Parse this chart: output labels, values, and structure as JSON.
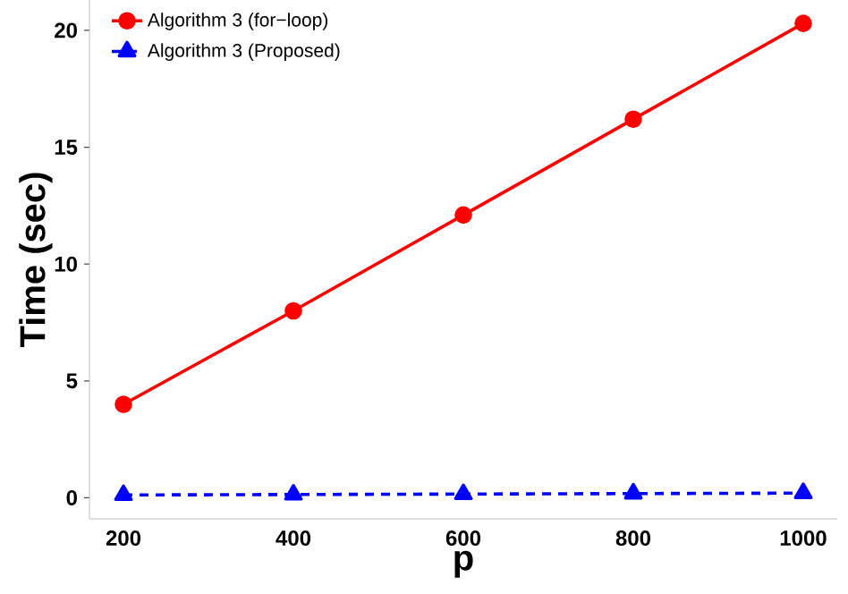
{
  "chart_data": {
    "type": "line",
    "xlabel": "p",
    "ylabel": "Time (sec)",
    "x": [
      200,
      400,
      600,
      800,
      1000
    ],
    "series": [
      {
        "name": "Algorithm 3 (for−loop)",
        "color": "#ff0000",
        "values": [
          4.0,
          8.0,
          12.1,
          16.2,
          20.3
        ],
        "marker": "circle",
        "line_style": "solid"
      },
      {
        "name": "Algorithm 3 (Proposed)",
        "color": "#0000ff",
        "values": [
          0.12,
          0.14,
          0.16,
          0.18,
          0.2
        ],
        "marker": "triangle",
        "line_style": "dashed"
      }
    ],
    "xlim": [
      160,
      1040
    ],
    "ylim": [
      -0.9,
      21.3
    ],
    "xticks": [
      200,
      400,
      600,
      800,
      1000
    ],
    "yticks": [
      0,
      5,
      10,
      15,
      20
    ],
    "grid": false,
    "legend": "top left"
  }
}
